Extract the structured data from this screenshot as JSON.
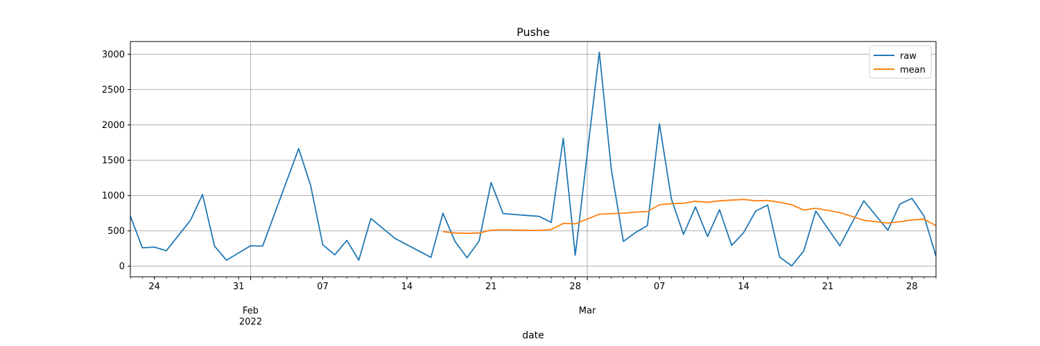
{
  "chart_data": {
    "type": "line",
    "title": "Pushe",
    "xlabel": "date",
    "ylabel": "",
    "ylim": [
      -150,
      3180
    ],
    "xlim": [
      "2022-01-22",
      "2022-03-30"
    ],
    "yticks": [
      0,
      500,
      1000,
      1500,
      2000,
      2500,
      3000
    ],
    "xticks": [
      {
        "date": "2022-01-24",
        "label": "24",
        "sub": ""
      },
      {
        "date": "2022-01-31",
        "label": "31",
        "sub": ""
      },
      {
        "date": "2022-02-01",
        "label": "Feb",
        "sub": "2022"
      },
      {
        "date": "2022-02-07",
        "label": "07",
        "sub": ""
      },
      {
        "date": "2022-02-14",
        "label": "14",
        "sub": ""
      },
      {
        "date": "2022-02-21",
        "label": "21",
        "sub": ""
      },
      {
        "date": "2022-02-28",
        "label": "28",
        "sub": ""
      },
      {
        "date": "2022-03-01",
        "label": "Mar",
        "sub": ""
      },
      {
        "date": "2022-03-07",
        "label": "07",
        "sub": ""
      },
      {
        "date": "2022-03-14",
        "label": "14",
        "sub": ""
      },
      {
        "date": "2022-03-21",
        "label": "21",
        "sub": ""
      },
      {
        "date": "2022-03-28",
        "label": "28",
        "sub": ""
      }
    ],
    "vgrid_dates": [
      "2022-02-01",
      "2022-03-01"
    ],
    "grid": true,
    "legend": "top-right",
    "series": [
      {
        "name": "raw",
        "color": "#1f77b4",
        "points": [
          [
            "2022-01-22",
            710
          ],
          [
            "2022-01-23",
            260
          ],
          [
            "2022-01-24",
            270
          ],
          [
            "2022-01-25",
            220
          ],
          [
            "2022-01-27",
            650
          ],
          [
            "2022-01-28",
            1015
          ],
          [
            "2022-01-29",
            285
          ],
          [
            "2022-01-30",
            85
          ],
          [
            "2022-02-01",
            290
          ],
          [
            "2022-02-02",
            285
          ],
          [
            "2022-02-05",
            1665
          ],
          [
            "2022-02-06",
            1140
          ],
          [
            "2022-02-07",
            305
          ],
          [
            "2022-02-08",
            160
          ],
          [
            "2022-02-09",
            365
          ],
          [
            "2022-02-10",
            85
          ],
          [
            "2022-02-11",
            675
          ],
          [
            "2022-02-13",
            395
          ],
          [
            "2022-02-16",
            125
          ],
          [
            "2022-02-17",
            750
          ],
          [
            "2022-02-18",
            350
          ],
          [
            "2022-02-19",
            120
          ],
          [
            "2022-02-20",
            355
          ],
          [
            "2022-02-21",
            1185
          ],
          [
            "2022-02-22",
            745
          ],
          [
            "2022-02-25",
            705
          ],
          [
            "2022-02-26",
            620
          ],
          [
            "2022-02-27",
            1810
          ],
          [
            "2022-02-28",
            155
          ],
          [
            "2022-03-02",
            3030
          ],
          [
            "2022-03-03",
            1370
          ],
          [
            "2022-03-04",
            350
          ],
          [
            "2022-03-05",
            475
          ],
          [
            "2022-03-06",
            575
          ],
          [
            "2022-03-07",
            2015
          ],
          [
            "2022-03-08",
            950
          ],
          [
            "2022-03-09",
            450
          ],
          [
            "2022-03-10",
            840
          ],
          [
            "2022-03-11",
            420
          ],
          [
            "2022-03-12",
            800
          ],
          [
            "2022-03-13",
            295
          ],
          [
            "2022-03-14",
            475
          ],
          [
            "2022-03-15",
            780
          ],
          [
            "2022-03-16",
            865
          ],
          [
            "2022-03-17",
            130
          ],
          [
            "2022-03-18",
            5
          ],
          [
            "2022-03-19",
            215
          ],
          [
            "2022-03-20",
            780
          ],
          [
            "2022-03-22",
            290
          ],
          [
            "2022-03-24",
            925
          ],
          [
            "2022-03-26",
            510
          ],
          [
            "2022-03-27",
            880
          ],
          [
            "2022-03-28",
            960
          ],
          [
            "2022-03-29",
            710
          ],
          [
            "2022-03-30",
            140
          ]
        ]
      },
      {
        "name": "mean",
        "color": "#ff7f0e",
        "points": [
          [
            "2022-02-17",
            490
          ],
          [
            "2022-02-18",
            470
          ],
          [
            "2022-02-19",
            465
          ],
          [
            "2022-02-20",
            470
          ],
          [
            "2022-02-21",
            510
          ],
          [
            "2022-02-22",
            515
          ],
          [
            "2022-02-25",
            505
          ],
          [
            "2022-02-26",
            520
          ],
          [
            "2022-02-27",
            605
          ],
          [
            "2022-02-28",
            600
          ],
          [
            "2022-03-02",
            735
          ],
          [
            "2022-03-03",
            745
          ],
          [
            "2022-03-04",
            750
          ],
          [
            "2022-03-05",
            765
          ],
          [
            "2022-03-06",
            775
          ],
          [
            "2022-03-07",
            870
          ],
          [
            "2022-03-08",
            885
          ],
          [
            "2022-03-09",
            890
          ],
          [
            "2022-03-10",
            920
          ],
          [
            "2022-03-11",
            905
          ],
          [
            "2022-03-12",
            925
          ],
          [
            "2022-03-13",
            935
          ],
          [
            "2022-03-14",
            945
          ],
          [
            "2022-03-15",
            925
          ],
          [
            "2022-03-16",
            930
          ],
          [
            "2022-03-17",
            905
          ],
          [
            "2022-03-18",
            870
          ],
          [
            "2022-03-19",
            795
          ],
          [
            "2022-03-20",
            820
          ],
          [
            "2022-03-22",
            760
          ],
          [
            "2022-03-24",
            650
          ],
          [
            "2022-03-26",
            610
          ],
          [
            "2022-03-27",
            630
          ],
          [
            "2022-03-28",
            655
          ],
          [
            "2022-03-29",
            665
          ],
          [
            "2022-03-30",
            575
          ]
        ]
      }
    ]
  }
}
